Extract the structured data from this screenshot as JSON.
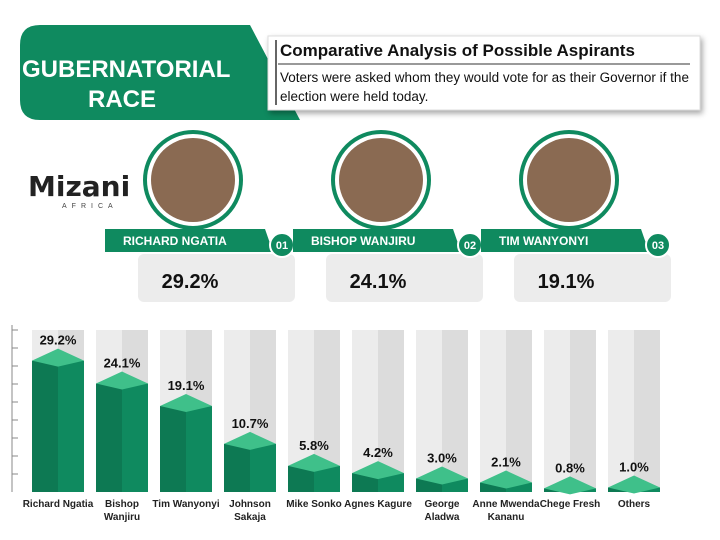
{
  "header": {
    "banner": "GUBERNATORIAL RACE",
    "title": "Comparative Analysis of Possible Aspirants",
    "subtitle": "Voters were asked whom they would vote for as their Governor if the election were held today."
  },
  "logo": {
    "name": "Mizani",
    "tagline": "AFRICA"
  },
  "top_candidates": [
    {
      "name": "RICHARD NGATIA",
      "rank": "01",
      "value": 29.2,
      "label": "29.2%"
    },
    {
      "name": "BISHOP WANJIRU",
      "rank": "02",
      "value": 24.1,
      "label": "24.1%"
    },
    {
      "name": "TIM WANYONYI",
      "rank": "03",
      "value": 19.1,
      "label": "19.1%"
    }
  ],
  "chart_data": {
    "type": "bar",
    "categories": [
      "Richard Ngatia",
      "Bishop Wanjiru",
      "Tim Wanyonyi",
      "Johnson Sakaja",
      "Mike Sonko",
      "Agnes Kagure",
      "George Aladwa",
      "Anne Mwenda Kananu",
      "Chege Fresh",
      "Others"
    ],
    "values": [
      29.2,
      24.1,
      19.1,
      10.7,
      5.8,
      4.2,
      3.0,
      2.1,
      0.8,
      1.0
    ],
    "value_labels": [
      "29.2%",
      "24.1%",
      "19.1%",
      "10.7%",
      "5.8%",
      "4.2%",
      "3.0%",
      "2.1%",
      "0.8%",
      "1.0%"
    ],
    "color": "#0f8a5f",
    "ylim": [
      0,
      36
    ]
  }
}
